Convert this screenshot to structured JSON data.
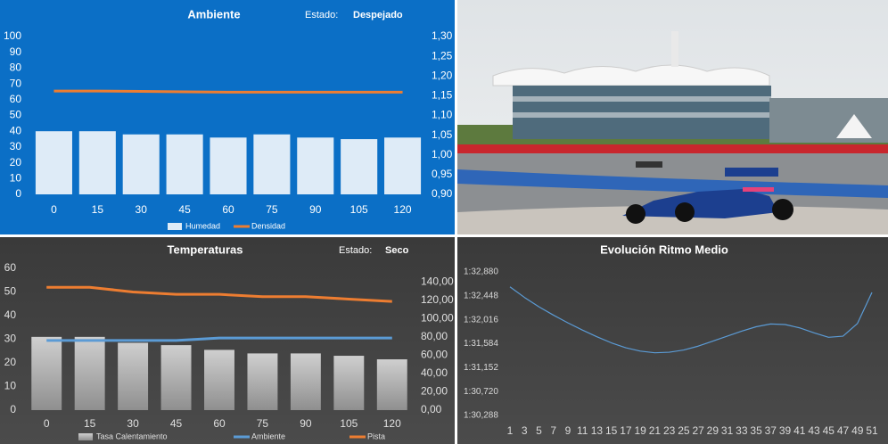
{
  "chart_data": [
    {
      "type": "bar",
      "title": "Ambiente",
      "annotations": [
        "Estado:",
        "Despejado"
      ],
      "categories": [
        "0",
        "15",
        "30",
        "45",
        "60",
        "75",
        "90",
        "105",
        "120"
      ],
      "series": [
        {
          "name": "Humedad",
          "color": "#deebf7",
          "values": [
            40,
            40,
            38,
            38,
            36,
            38,
            36,
            35,
            36
          ]
        },
        {
          "name": "Densidad",
          "color": "#ed7d31",
          "type": "line",
          "axis": "y2",
          "values": [
            1.162,
            1.162,
            1.161,
            1.16,
            1.159,
            1.159,
            1.159,
            1.159,
            1.159
          ]
        }
      ],
      "ylim": [
        0,
        100
      ],
      "yticks": [
        0,
        10,
        20,
        30,
        40,
        50,
        60,
        70,
        80,
        90,
        100
      ],
      "y2lim": [
        0.9,
        1.3
      ],
      "y2ticks": [
        {
          "value": 0.9,
          "label": "0,90"
        },
        {
          "value": 0.95,
          "label": "0,95"
        },
        {
          "value": 1.0,
          "label": "1,00"
        },
        {
          "value": 1.05,
          "label": "1,05"
        },
        {
          "value": 1.1,
          "label": "1,10"
        },
        {
          "value": 1.15,
          "label": "1,15"
        },
        {
          "value": 1.2,
          "label": "1,20"
        },
        {
          "value": 1.25,
          "label": "1,25"
        },
        {
          "value": 1.3,
          "label": "1,30"
        }
      ]
    },
    {
      "type": "bar",
      "title": "Temperaturas",
      "annotations": [
        "Estado:",
        "Seco"
      ],
      "categories": [
        "0",
        "15",
        "30",
        "45",
        "60",
        "75",
        "90",
        "105",
        "120"
      ],
      "series": [
        {
          "name": "Tasa Calentamiento",
          "color": "#a6a6a6",
          "values": [
            31,
            31,
            28.5,
            27.5,
            25.5,
            24,
            24,
            23,
            21.5
          ]
        },
        {
          "name": "Ambiente",
          "color": "#5b9bd5",
          "type": "line",
          "values": [
            29.5,
            29.5,
            29.5,
            29.5,
            30.5,
            30.5,
            30.5,
            30.5,
            30.5
          ]
        },
        {
          "name": "Pista",
          "color": "#ed7d31",
          "type": "line",
          "values": [
            52,
            52,
            50,
            49,
            49,
            48,
            48,
            47,
            46
          ]
        }
      ],
      "ylim": [
        0,
        60
      ],
      "yticks": [
        0,
        10,
        20,
        30,
        40,
        50,
        60
      ],
      "y2lim": [
        0,
        155
      ],
      "y2ticks": [
        {
          "value": 0,
          "label": "0,00"
        },
        {
          "value": 20,
          "label": "20,00"
        },
        {
          "value": 40,
          "label": "40,00"
        },
        {
          "value": 60,
          "label": "60,00"
        },
        {
          "value": 80,
          "label": "80,00"
        },
        {
          "value": 100,
          "label": "100,00"
        },
        {
          "value": 120,
          "label": "120,00"
        },
        {
          "value": 140,
          "label": "140,00"
        }
      ]
    },
    {
      "type": "line",
      "title": "Evolución Ritmo Medio",
      "x": [
        1,
        3,
        5,
        7,
        9,
        11,
        13,
        15,
        17,
        19,
        21,
        23,
        25,
        27,
        29,
        31,
        33,
        35,
        37,
        39,
        41,
        43,
        45,
        47,
        49,
        51
      ],
      "series": [
        {
          "color": "#5b9bd5",
          "values": [
            92.61,
            92.42,
            92.25,
            92.1,
            91.96,
            91.83,
            91.71,
            91.6,
            91.51,
            91.45,
            91.42,
            91.43,
            91.47,
            91.54,
            91.63,
            91.72,
            91.81,
            91.89,
            91.94,
            91.93,
            91.87,
            91.78,
            91.7,
            91.72,
            91.95,
            92.51
          ]
        }
      ],
      "xlim": [
        1,
        51
      ],
      "xticks": [
        1,
        3,
        5,
        7,
        9,
        11,
        13,
        15,
        17,
        19,
        21,
        23,
        25,
        27,
        29,
        31,
        33,
        35,
        37,
        39,
        41,
        43,
        45,
        47,
        49,
        51
      ],
      "ylim": [
        90.288,
        92.88
      ],
      "yticks": [
        {
          "value": 90.288,
          "label": "1:30,288"
        },
        {
          "value": 90.72,
          "label": "1:30,720"
        },
        {
          "value": 91.152,
          "label": "1:31,152"
        },
        {
          "value": 91.584,
          "label": "1:31,584"
        },
        {
          "value": 92.016,
          "label": "1:32,016"
        },
        {
          "value": 92.448,
          "label": "1:32,448"
        },
        {
          "value": 92.88,
          "label": "1:32,880"
        }
      ]
    }
  ]
}
